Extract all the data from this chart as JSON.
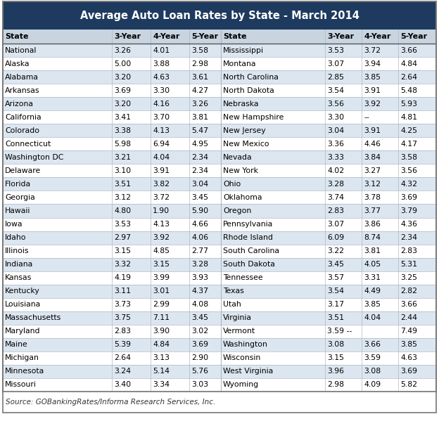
{
  "title": "Average Auto Loan Rates by State - March 2014",
  "source": "Source: GOBankingRates/Informa Research Services, Inc.",
  "title_bg": "#1e3a5f",
  "title_color": "#ffffff",
  "header_row_bg": "#c8d4e0",
  "row_colors": [
    "#dce6f0",
    "#ffffff"
  ],
  "border_color": "#b0b8c0",
  "col_headers": [
    "State",
    "3-Year",
    "4-Year",
    "5-Year",
    "State",
    "3-Year",
    "4-Year",
    "5-Year"
  ],
  "left_data": [
    [
      "National",
      "3.26",
      "4.01",
      "3.58"
    ],
    [
      "Alaska",
      "5.00",
      "3.88",
      "2.98"
    ],
    [
      "Alabama",
      "3.20",
      "4.63",
      "3.61"
    ],
    [
      "Arkansas",
      "3.69",
      "3.30",
      "4.27"
    ],
    [
      "Arizona",
      "3.20",
      "4.16",
      "3.26"
    ],
    [
      "California",
      "3.41",
      "3.70",
      "3.81"
    ],
    [
      "Colorado",
      "3.38",
      "4.13",
      "5.47"
    ],
    [
      "Connecticut",
      "5.98",
      "6.94",
      "4.95"
    ],
    [
      "Washington DC",
      "3.21",
      "4.04",
      "2.34"
    ],
    [
      "Delaware",
      "3.10",
      "3.91",
      "2.34"
    ],
    [
      "Florida",
      "3.51",
      "3.82",
      "3.04"
    ],
    [
      "Georgia",
      "3.12",
      "3.72",
      "3.45"
    ],
    [
      "Hawaii",
      "4.80",
      "1.90",
      "5.90"
    ],
    [
      "Iowa",
      "3.53",
      "4.13",
      "4.66"
    ],
    [
      "Idaho",
      "2.97",
      "3.92",
      "4.06"
    ],
    [
      "Illinois",
      "3.15",
      "4.85",
      "2.77"
    ],
    [
      "Indiana",
      "3.32",
      "3.15",
      "3.28"
    ],
    [
      "Kansas",
      "4.19",
      "3.99",
      "3.93"
    ],
    [
      "Kentucky",
      "3.11",
      "3.01",
      "4.37"
    ],
    [
      "Louisiana",
      "3.73",
      "2.99",
      "4.08"
    ],
    [
      "Massachusetts",
      "3.75",
      "7.11",
      "3.45"
    ],
    [
      "Maryland",
      "2.83",
      "3.90",
      "3.02"
    ],
    [
      "Maine",
      "5.39",
      "4.84",
      "3.69"
    ],
    [
      "Michigan",
      "2.64",
      "3.13",
      "2.90"
    ],
    [
      "Minnesota",
      "3.24",
      "5.14",
      "5.76"
    ],
    [
      "Missouri",
      "3.40",
      "3.34",
      "3.03"
    ]
  ],
  "right_data": [
    [
      "Mississippi",
      "3.53",
      "3.72",
      "3.66"
    ],
    [
      "Montana",
      "3.07",
      "3.94",
      "4.84"
    ],
    [
      "North Carolina",
      "2.85",
      "3.85",
      "2.64"
    ],
    [
      "North Dakota",
      "3.54",
      "3.91",
      "5.48"
    ],
    [
      "Nebraska",
      "3.56",
      "3.92",
      "5.93"
    ],
    [
      "New Hampshire",
      "3.30",
      "--",
      "4.81"
    ],
    [
      "New Jersey",
      "3.04",
      "3.91",
      "4.25"
    ],
    [
      "New Mexico",
      "3.36",
      "4.46",
      "4.17"
    ],
    [
      "Nevada",
      "3.33",
      "3.84",
      "3.58"
    ],
    [
      "New York",
      "4.02",
      "3.27",
      "3.56"
    ],
    [
      "Ohio",
      "3.28",
      "3.12",
      "4.32"
    ],
    [
      "Oklahoma",
      "3.74",
      "3.78",
      "3.69"
    ],
    [
      "Oregon",
      "2.83",
      "3.77",
      "3.79"
    ],
    [
      "Pennsylvania",
      "3.07",
      "3.86",
      "4.36"
    ],
    [
      "Rhode Island",
      "6.09",
      "8.74",
      "2.34"
    ],
    [
      "South Carolina",
      "3.22",
      "3.81",
      "2.83"
    ],
    [
      "South Dakota",
      "3.45",
      "4.05",
      "5.31"
    ],
    [
      "Tennessee",
      "3.57",
      "3.31",
      "3.25"
    ],
    [
      "Texas",
      "3.54",
      "4.49",
      "2.82"
    ],
    [
      "Utah",
      "3.17",
      "3.85",
      "3.66"
    ],
    [
      "Virginia",
      "3.51",
      "4.04",
      "2.44"
    ],
    [
      "Vermont",
      "3.59 --",
      "",
      "7.49"
    ],
    [
      "Washington",
      "3.08",
      "3.66",
      "3.85"
    ],
    [
      "Wisconsin",
      "3.15",
      "3.59",
      "4.63"
    ],
    [
      "West Virginia",
      "3.96",
      "3.08",
      "3.69"
    ],
    [
      "Wyoming",
      "2.98",
      "4.09",
      "5.82"
    ]
  ]
}
